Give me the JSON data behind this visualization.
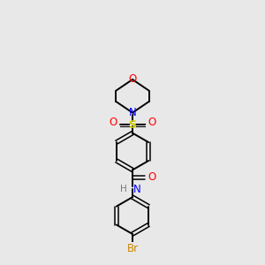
{
  "bg_color": "#e8e8e8",
  "atom_colors": {
    "O": "#ff0000",
    "N": "#0000ff",
    "S": "#cccc00",
    "Br": "#cc8800",
    "C": "#000000",
    "H": "#777777"
  },
  "figsize": [
    3.0,
    3.0
  ],
  "dpi": 100,
  "xlim": [
    0,
    6
  ],
  "ylim": [
    0,
    10
  ]
}
